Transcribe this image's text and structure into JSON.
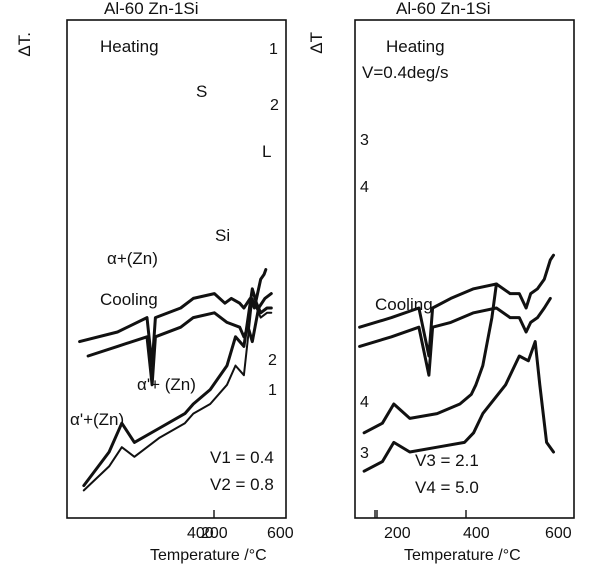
{
  "chart_data": [
    {
      "type": "line",
      "title": "Al-60 Zn-1Si",
      "ylabel": "ΔT.",
      "xlabel": "Temperature /°C",
      "xlim": [
        80,
        600
      ],
      "xticks": [
        "200",
        "400",
        "600"
      ],
      "grid": false,
      "annotations": {
        "heating": "Heating",
        "cooling": "Cooling",
        "s": "S",
        "l": "L",
        "si": "Si",
        "alpha_zn": "α+(Zn)",
        "alpha_p_zn_1": "α'+ (Zn)",
        "alpha_p_zn_2": "α'+(Zn)",
        "v1": "V1 = 0.4",
        "v2": "V2 = 0.8"
      },
      "series": [
        {
          "name": "1",
          "phase": "heating",
          "x": [
            110,
            200,
            270,
            282,
            290,
            350,
            380,
            430,
            455,
            470,
            490,
            500,
            515,
            525,
            540,
            548,
            552
          ],
          "y": [
            0.33,
            0.35,
            0.38,
            0.28,
            0.38,
            0.4,
            0.42,
            0.43,
            0.41,
            0.42,
            0.41,
            0.4,
            0.42,
            0.4,
            0.46,
            0.47,
            0.48
          ]
        },
        {
          "name": "2",
          "phase": "heating",
          "x": [
            130,
            200,
            270,
            282,
            290,
            350,
            380,
            430,
            460,
            490,
            500,
            510,
            520,
            535,
            550,
            565
          ],
          "y": [
            0.3,
            0.32,
            0.34,
            0.24,
            0.34,
            0.36,
            0.38,
            0.39,
            0.37,
            0.36,
            0.34,
            0.36,
            0.33,
            0.4,
            0.42,
            0.43
          ]
        },
        {
          "name": "1",
          "phase": "cooling",
          "x": [
            120,
            180,
            210,
            240,
            300,
            360,
            380,
            420,
            460,
            480,
            500,
            510,
            520,
            530,
            540,
            555,
            565
          ],
          "y": [
            0.02,
            0.07,
            0.11,
            0.09,
            0.13,
            0.16,
            0.18,
            0.2,
            0.24,
            0.28,
            0.26,
            0.34,
            0.42,
            0.4,
            0.38,
            0.39,
            0.39
          ]
        },
        {
          "name": "2",
          "phase": "cooling",
          "x": [
            120,
            180,
            210,
            240,
            300,
            360,
            380,
            420,
            460,
            480,
            500,
            510,
            520,
            530,
            540,
            555,
            565
          ],
          "y": [
            0.03,
            0.1,
            0.16,
            0.12,
            0.15,
            0.18,
            0.2,
            0.23,
            0.28,
            0.34,
            0.32,
            0.38,
            0.44,
            0.41,
            0.39,
            0.4,
            0.4
          ]
        }
      ]
    },
    {
      "type": "line",
      "title": "Al-60 Zn-1Si",
      "ylabel": "ΔT",
      "xlabel": "Temperature /°C",
      "xlim": [
        120,
        600
      ],
      "xticks": [
        "200",
        "400",
        "600"
      ],
      "grid": false,
      "annotations": {
        "heating": "Heating",
        "rate": "V=0.4deg/s",
        "cooling": "Cooling",
        "v3": "V3 = 2.1",
        "v4": "V4 = 5.0"
      },
      "series": [
        {
          "name": "3",
          "phase": "heating",
          "x": [
            130,
            200,
            260,
            282,
            290,
            330,
            380,
            430,
            460,
            480,
            495,
            505,
            520,
            535,
            548,
            555
          ],
          "y": [
            0.36,
            0.38,
            0.4,
            0.3,
            0.4,
            0.42,
            0.44,
            0.45,
            0.43,
            0.43,
            0.4,
            0.43,
            0.44,
            0.46,
            0.5,
            0.51
          ]
        },
        {
          "name": "4",
          "phase": "heating",
          "x": [
            130,
            200,
            260,
            282,
            290,
            330,
            380,
            430,
            460,
            480,
            495,
            505,
            520,
            535,
            548
          ],
          "y": [
            0.32,
            0.34,
            0.36,
            0.26,
            0.36,
            0.37,
            0.39,
            0.4,
            0.38,
            0.38,
            0.35,
            0.37,
            0.38,
            0.4,
            0.42
          ]
        },
        {
          "name": "4",
          "phase": "cooling",
          "x": [
            140,
            180,
            205,
            240,
            300,
            350,
            375,
            385,
            400,
            420,
            430
          ],
          "y": [
            0.14,
            0.16,
            0.2,
            0.17,
            0.18,
            0.2,
            0.22,
            0.24,
            0.28,
            0.38,
            0.45
          ]
        },
        {
          "name": "3",
          "phase": "cooling",
          "x": [
            140,
            180,
            205,
            240,
            300,
            360,
            380,
            400,
            450,
            480,
            500,
            515,
            525,
            540,
            555
          ],
          "y": [
            0.06,
            0.08,
            0.12,
            0.1,
            0.11,
            0.12,
            0.14,
            0.18,
            0.24,
            0.3,
            0.29,
            0.33,
            0.24,
            0.12,
            0.1
          ]
        }
      ]
    }
  ]
}
